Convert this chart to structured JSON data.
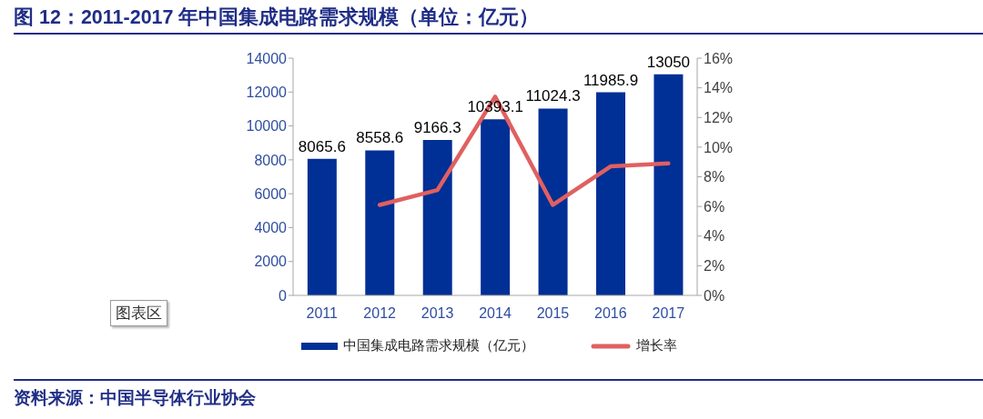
{
  "chart_data": {
    "type": "bar",
    "title": "图 12：2011-2017 年中国集成电路需求规模（单位：亿元）",
    "categories": [
      "2011",
      "2012",
      "2013",
      "2014",
      "2015",
      "2016",
      "2017"
    ],
    "series": [
      {
        "name": "中国集成电路需求规模（亿元）",
        "color": "#002f96",
        "values": [
          8065.6,
          8558.6,
          9166.3,
          10393.1,
          11024.3,
          11985.9,
          13050
        ],
        "value_labels": [
          "8065.6",
          "8558.6",
          "9166.3",
          "10393.1",
          "11024.3",
          "11985.9",
          "13050"
        ]
      },
      {
        "name": "增长率",
        "type": "line",
        "axis": "y2",
        "color": "#e06060",
        "values": [
          null,
          6.1,
          7.1,
          13.4,
          6.1,
          8.7,
          8.9
        ]
      }
    ],
    "ylim": [
      0,
      14000
    ],
    "yticks": [
      0,
      2000,
      4000,
      6000,
      8000,
      10000,
      12000,
      14000
    ],
    "y2lim": [
      0,
      16
    ],
    "y2ticks": [
      {
        "value": 0,
        "label": "0%"
      },
      {
        "value": 2,
        "label": "2%"
      },
      {
        "value": 4,
        "label": "4%"
      },
      {
        "value": 6,
        "label": "6%"
      },
      {
        "value": 8,
        "label": "8%"
      },
      {
        "value": 10,
        "label": "10%"
      },
      {
        "value": 12,
        "label": "12%"
      },
      {
        "value": 14,
        "label": "14%"
      },
      {
        "value": 16,
        "label": "16%"
      }
    ],
    "legend": "bottom",
    "marker": "none",
    "annotations": [
      "资料来源：中国半导体行业协会",
      "图表区"
    ]
  }
}
